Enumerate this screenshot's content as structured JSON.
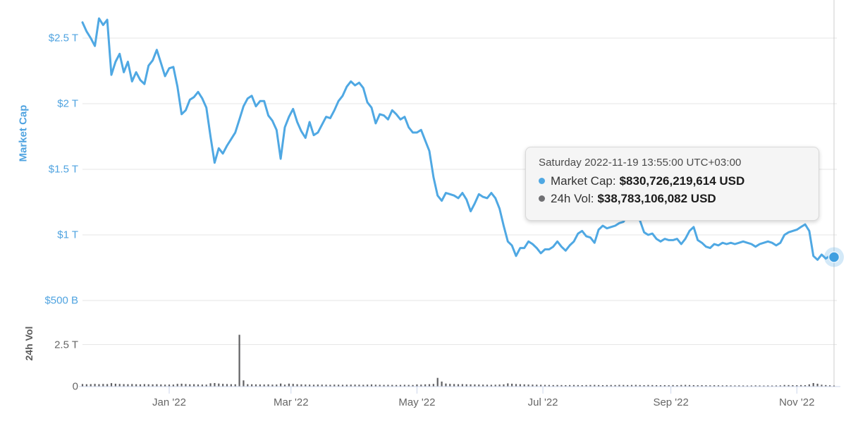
{
  "colors": {
    "line_blue": "#4FA8E3",
    "axis_label_blue": "#4FA3E0",
    "endpoint_dot": "#3F9FE0",
    "endpoint_halo": "rgba(79,168,227,0.25)",
    "volume_bar_gray": "#606063",
    "gray_text": "#666666",
    "gridline": "#e6e6e6",
    "axis_line": "#ccd6eb",
    "crosshair": "#cccccc",
    "tooltip_bg": "#f5f5f5"
  },
  "axes": {
    "market_cap": {
      "title": "Market Cap",
      "tick_labels": [
        "$2.5 T",
        "$2 T",
        "$1.5 T",
        "$1 T",
        "$500 B"
      ],
      "tick_values_T": [
        2.5,
        2.0,
        1.5,
        1.0,
        0.5
      ]
    },
    "volume": {
      "title": "24h Vol",
      "tick_labels": [
        "2.5 T",
        "0"
      ],
      "tick_values_B": [
        2500,
        0
      ]
    },
    "x": {
      "tick_labels": [
        "Jan '22",
        "Mar '22",
        "May '22",
        "Jul '22",
        "Sep '22",
        "Nov '22"
      ],
      "tick_days": [
        42,
        101,
        162,
        223,
        285,
        346
      ]
    }
  },
  "tooltip": {
    "timestamp": "Saturday 2022-11-19 13:55:00 UTC+03:00",
    "rows": [
      {
        "label": "Market Cap:",
        "value": "$830,726,219,614 USD",
        "bullet_color": "#4FA8E3"
      },
      {
        "label": "24h Vol:",
        "value": "$38,783,106,082 USD",
        "bullet_color": "#707073"
      }
    ]
  },
  "chart_data": {
    "type": "line+bar",
    "title": "",
    "x_window": "1 year ending 2022-11-19 (ticks Jan '22 – Nov '22)",
    "sample_step_days": 2,
    "total_days": 364,
    "market_cap": {
      "name": "Market Cap",
      "unit": "trillion USD",
      "ylim_T": [
        0.5,
        2.75
      ],
      "hovered_value_usd": 830726219614,
      "values_T": [
        2.62,
        2.55,
        2.5,
        2.44,
        2.65,
        2.6,
        2.64,
        2.22,
        2.32,
        2.38,
        2.24,
        2.32,
        2.17,
        2.24,
        2.18,
        2.15,
        2.29,
        2.33,
        2.41,
        2.31,
        2.21,
        2.27,
        2.28,
        2.13,
        1.92,
        1.95,
        2.03,
        2.05,
        2.09,
        2.04,
        1.97,
        1.75,
        1.55,
        1.66,
        1.62,
        1.68,
        1.73,
        1.78,
        1.88,
        1.98,
        2.04,
        2.06,
        1.98,
        2.02,
        2.02,
        1.91,
        1.87,
        1.8,
        1.58,
        1.82,
        1.9,
        1.96,
        1.86,
        1.79,
        1.74,
        1.86,
        1.76,
        1.78,
        1.84,
        1.9,
        1.89,
        1.95,
        2.02,
        2.06,
        2.13,
        2.17,
        2.14,
        2.16,
        2.12,
        2.01,
        1.97,
        1.85,
        1.92,
        1.91,
        1.88,
        1.95,
        1.92,
        1.88,
        1.9,
        1.82,
        1.78,
        1.78,
        1.8,
        1.72,
        1.64,
        1.44,
        1.3,
        1.26,
        1.32,
        1.31,
        1.3,
        1.28,
        1.32,
        1.27,
        1.18,
        1.24,
        1.31,
        1.29,
        1.28,
        1.32,
        1.28,
        1.2,
        1.07,
        0.95,
        0.92,
        0.84,
        0.9,
        0.9,
        0.95,
        0.93,
        0.9,
        0.86,
        0.89,
        0.89,
        0.91,
        0.95,
        0.91,
        0.88,
        0.92,
        0.95,
        1.01,
        1.03,
        0.99,
        0.98,
        0.94,
        1.04,
        1.07,
        1.05,
        1.06,
        1.07,
        1.09,
        1.1,
        1.15,
        1.16,
        1.14,
        1.11,
        1.02,
        1.0,
        1.01,
        0.97,
        0.95,
        0.97,
        0.96,
        0.96,
        0.97,
        0.93,
        0.97,
        1.03,
        1.06,
        0.96,
        0.94,
        0.91,
        0.9,
        0.93,
        0.92,
        0.94,
        0.93,
        0.94,
        0.93,
        0.94,
        0.95,
        0.94,
        0.93,
        0.91,
        0.93,
        0.94,
        0.95,
        0.94,
        0.92,
        0.94,
        1.0,
        1.02,
        1.03,
        1.04,
        1.06,
        1.08,
        1.03,
        0.84,
        0.81,
        0.85,
        0.82,
        0.84,
        0.8307
      ]
    },
    "volume_24h": {
      "name": "24h Vol",
      "unit": "billion USD",
      "ylim_B": [
        0,
        3100
      ],
      "hovered_value_usd": 38783106082,
      "values_B": [
        130,
        118,
        125,
        140,
        122,
        135,
        128,
        185,
        150,
        135,
        125,
        120,
        130,
        118,
        112,
        125,
        115,
        110,
        120,
        105,
        95,
        100,
        98,
        140,
        150,
        130,
        115,
        120,
        105,
        100,
        95,
        175,
        190,
        160,
        140,
        130,
        120,
        115,
        3090,
        350,
        120,
        115,
        110,
        105,
        100,
        110,
        95,
        100,
        160,
        95,
        155,
        140,
        120,
        110,
        100,
        95,
        90,
        100,
        95,
        90,
        85,
        95,
        90,
        85,
        90,
        95,
        95,
        90,
        85,
        95,
        105,
        90,
        85,
        80,
        85,
        80,
        75,
        80,
        85,
        80,
        75,
        105,
        95,
        110,
        120,
        135,
        500,
        280,
        160,
        140,
        130,
        120,
        125,
        115,
        110,
        105,
        100,
        95,
        90,
        85,
        90,
        100,
        110,
        170,
        150,
        130,
        120,
        110,
        100,
        95,
        90,
        85,
        80,
        75,
        70,
        75,
        70,
        65,
        70,
        75,
        70,
        65,
        70,
        75,
        80,
        70,
        65,
        70,
        75,
        70,
        80,
        75,
        70,
        75,
        80,
        70,
        65,
        75,
        70,
        65,
        60,
        65,
        60,
        70,
        65,
        75,
        80,
        70,
        65,
        60,
        65,
        60,
        55,
        60,
        55,
        50,
        55,
        50,
        45,
        50,
        45,
        40,
        45,
        50,
        45,
        40,
        45,
        40,
        45,
        50,
        75,
        70,
        65,
        60,
        70,
        65,
        110,
        190,
        150,
        90,
        70,
        55,
        38.8
      ]
    },
    "legend_position": "none (series named in tooltip)",
    "grid": true
  }
}
